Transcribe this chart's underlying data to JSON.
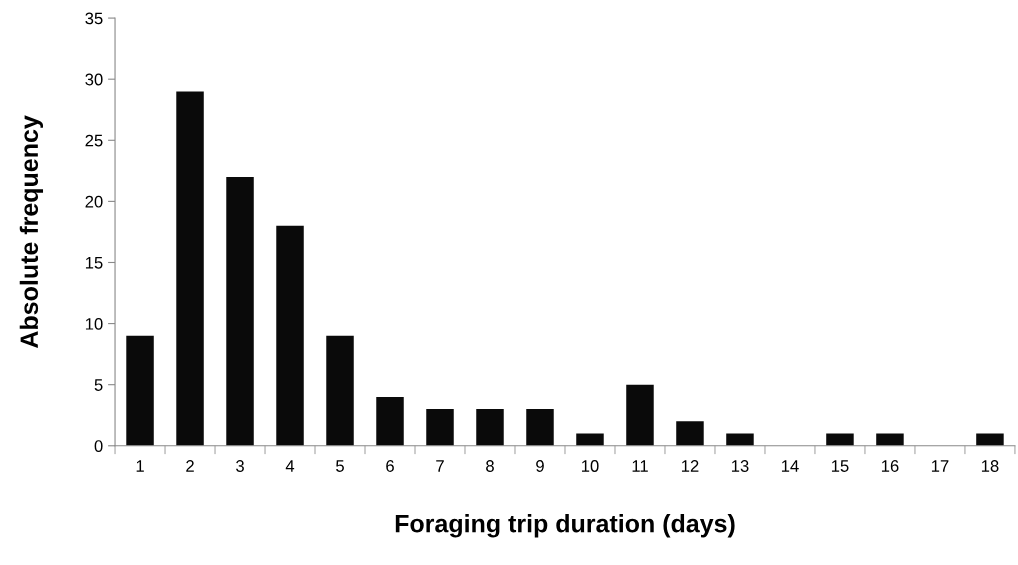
{
  "chart_data": {
    "type": "bar",
    "xlabel": "Foraging trip duration (days)",
    "ylabel": "Absolute frequency",
    "categories": [
      "1",
      "2",
      "3",
      "4",
      "5",
      "6",
      "7",
      "8",
      "9",
      "10",
      "11",
      "12",
      "13",
      "14",
      "15",
      "16",
      "17",
      "18"
    ],
    "values": [
      9,
      29,
      22,
      18,
      9,
      4,
      3,
      3,
      3,
      1,
      5,
      2,
      1,
      0,
      1,
      1,
      0,
      1
    ],
    "color": "#0a0a0a",
    "ylim": [
      0,
      35
    ],
    "yticks": [
      0,
      5,
      10,
      15,
      20,
      25,
      30,
      35
    ],
    "grid": false
  }
}
